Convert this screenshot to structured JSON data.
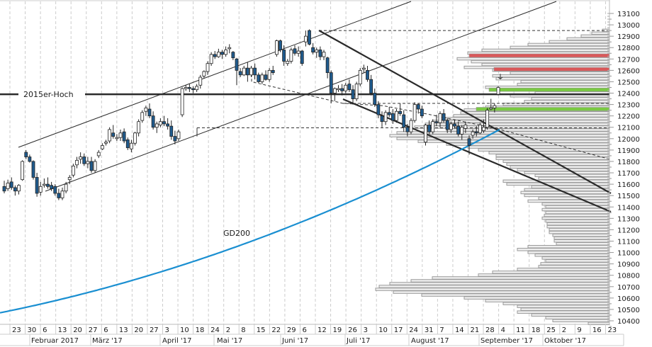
{
  "chart_data": {
    "type": "candlestick",
    "title": "",
    "instrument_hint": "DAX daily, Jan–Sep 2017",
    "xlabel": "",
    "ylabel": "",
    "ylim": [
      10300,
      13200
    ],
    "y_ticks": [
      13100,
      13000,
      12900,
      12800,
      12700,
      12600,
      12500,
      12400,
      12300,
      12200,
      12100,
      12000,
      11900,
      11800,
      11700,
      11600,
      11500,
      11400,
      11300,
      11200,
      11100,
      11000,
      10900,
      10800,
      10700,
      10600,
      10500,
      10400
    ],
    "x_day_ticks": [
      "23",
      "30",
      "6",
      "13",
      "20",
      "27",
      "6",
      "13",
      "20",
      "27",
      "3",
      "10",
      "18",
      "24",
      "2",
      "8",
      "15",
      "22",
      "29",
      "6",
      "12",
      "19",
      "26",
      "3",
      "10",
      "17",
      "24",
      "31",
      "7",
      "14",
      "21",
      "28",
      "4",
      "11",
      "18",
      "25",
      "2",
      "9",
      "16",
      "23"
    ],
    "x_month_labels": [
      "Februar 2017",
      "März '17",
      "April '17",
      "Mai '17",
      "Juni '17",
      "Juli '17",
      "August '17",
      "September '17",
      "Oktober '17"
    ],
    "grid": "vertical dashed weekly",
    "annotations": {
      "horizontal_line_label": "2015er-Hoch",
      "horizontal_line_level": 12390,
      "moving_average_label": "GD200",
      "moving_average_color": "#1a8fd1"
    },
    "colors": {
      "bull_candle_fill": "#ffffff",
      "bear_candle_fill": "#1f5b8e",
      "candle_outline": "#222222",
      "resistance_zone": "#d9585a",
      "support_zone": "#7ac943",
      "volume_profile_fill": "#eeeeee",
      "volume_profile_stroke": "#9a9a9a",
      "trendline": "#2a2a2a",
      "gridline": "#cccccc"
    },
    "zones": [
      {
        "type": "resistance",
        "level": 12730,
        "color": "#d9585a"
      },
      {
        "type": "resistance",
        "level": 12610,
        "color": "#d9585a"
      },
      {
        "type": "support",
        "level": 12430,
        "color": "#7ac943"
      },
      {
        "type": "support",
        "level": 12260,
        "color": "#7ac943"
      }
    ],
    "dashed_levels": [
      12950,
      12310,
      12095
    ],
    "gd200": {
      "start": {
        "date": "Jan 2017",
        "value": 10470
      },
      "end": {
        "date": "Sep 2017",
        "value": 12080
      }
    },
    "candles": [
      [
        11580,
        11630,
        11520,
        11540
      ],
      [
        11560,
        11640,
        11540,
        11610
      ],
      [
        11620,
        11660,
        11550,
        11570
      ],
      [
        11570,
        11590,
        11500,
        11540
      ],
      [
        11540,
        11600,
        11510,
        11590
      ],
      [
        11640,
        11810,
        11630,
        11800
      ],
      [
        11880,
        11900,
        11820,
        11840
      ],
      [
        11840,
        11860,
        11790,
        11800
      ],
      [
        11800,
        11810,
        11640,
        11660
      ],
      [
        11660,
        11700,
        11490,
        11520
      ],
      [
        11530,
        11620,
        11500,
        11580
      ],
      [
        11590,
        11650,
        11570,
        11600
      ],
      [
        11600,
        11660,
        11560,
        11580
      ],
      [
        11590,
        11620,
        11540,
        11560
      ],
      [
        11580,
        11600,
        11500,
        11520
      ],
      [
        11520,
        11560,
        11460,
        11480
      ],
      [
        11480,
        11570,
        11460,
        11540
      ],
      [
        11540,
        11620,
        11520,
        11600
      ],
      [
        11640,
        11680,
        11600,
        11660
      ],
      [
        11680,
        11780,
        11660,
        11760
      ],
      [
        11770,
        11840,
        11740,
        11810
      ],
      [
        11820,
        11880,
        11780,
        11840
      ],
      [
        11840,
        11870,
        11760,
        11780
      ],
      [
        11780,
        11840,
        11740,
        11800
      ],
      [
        11800,
        11840,
        11700,
        11720
      ],
      [
        11720,
        11820,
        11700,
        11800
      ],
      [
        11850,
        11900,
        11830,
        11880
      ],
      [
        11910,
        11960,
        11900,
        11940
      ],
      [
        11960,
        11990,
        11940,
        11970
      ],
      [
        11980,
        12100,
        11960,
        12080
      ],
      [
        12050,
        12120,
        12000,
        12020
      ],
      [
        12000,
        12040,
        11980,
        12010
      ],
      [
        12010,
        12080,
        11980,
        12050
      ],
      [
        12060,
        12090,
        11960,
        11980
      ],
      [
        11990,
        12010,
        11900,
        11920
      ],
      [
        11910,
        11990,
        11880,
        11960
      ],
      [
        11960,
        12060,
        11940,
        12050
      ],
      [
        12050,
        12170,
        12020,
        12150
      ],
      [
        12160,
        12250,
        12140,
        12230
      ],
      [
        12240,
        12290,
        12200,
        12270
      ],
      [
        12260,
        12310,
        12180,
        12200
      ],
      [
        12200,
        12240,
        12080,
        12100
      ],
      [
        12100,
        12150,
        12050,
        12130
      ],
      [
        12120,
        12180,
        12100,
        12150
      ],
      [
        12150,
        12200,
        12110,
        12130
      ],
      [
        12130,
        12180,
        12080,
        12110
      ],
      [
        12110,
        12160,
        11990,
        12020
      ],
      [
        12020,
        12070,
        11950,
        11980
      ],
      [
        12000,
        12080,
        11980,
        12060
      ],
      [
        12210,
        12450,
        12190,
        12440
      ],
      [
        12440,
        12470,
        12420,
        12450
      ],
      [
        12450,
        12480,
        12410,
        12440
      ],
      [
        12440,
        12460,
        12400,
        12430
      ],
      [
        12430,
        12480,
        12410,
        12460
      ],
      [
        12470,
        12560,
        12440,
        12540
      ],
      [
        12550,
        12600,
        12530,
        12590
      ],
      [
        12590,
        12680,
        12560,
        12660
      ],
      [
        12660,
        12760,
        12640,
        12740
      ],
      [
        12740,
        12770,
        12700,
        12720
      ],
      [
        12720,
        12790,
        12710,
        12760
      ],
      [
        12760,
        12780,
        12700,
        12740
      ],
      [
        12740,
        12810,
        12720,
        12780
      ],
      [
        12790,
        12830,
        12750,
        12800
      ],
      [
        12760,
        12770,
        12690,
        12710
      ],
      [
        12700,
        12710,
        12470,
        12600
      ],
      [
        12590,
        12620,
        12540,
        12560
      ],
      [
        12560,
        12640,
        12550,
        12620
      ],
      [
        12620,
        12670,
        12500,
        12560
      ],
      [
        12560,
        12640,
        12540,
        12620
      ],
      [
        12620,
        12660,
        12520,
        12560
      ],
      [
        12560,
        12580,
        12490,
        12500
      ],
      [
        12500,
        12580,
        12480,
        12560
      ],
      [
        12560,
        12600,
        12510,
        12520
      ],
      [
        12520,
        12620,
        12500,
        12600
      ],
      [
        12600,
        12640,
        12560,
        12580
      ],
      [
        12740,
        12870,
        12720,
        12860
      ],
      [
        12860,
        12870,
        12760,
        12780
      ],
      [
        12780,
        12820,
        12640,
        12680
      ],
      [
        12660,
        12700,
        12640,
        12680
      ],
      [
        12680,
        12800,
        12660,
        12780
      ],
      [
        12790,
        12820,
        12730,
        12750
      ],
      [
        12750,
        12810,
        12720,
        12770
      ],
      [
        12770,
        12780,
        12640,
        12660
      ],
      [
        12850,
        12950,
        12810,
        12900
      ],
      [
        12950,
        12960,
        12820,
        12830
      ],
      [
        12800,
        12840,
        12740,
        12760
      ],
      [
        12760,
        12800,
        12710,
        12780
      ],
      [
        12780,
        12810,
        12690,
        12720
      ],
      [
        12720,
        12780,
        12690,
        12760
      ],
      [
        12710,
        12720,
        12530,
        12580
      ],
      [
        12580,
        12600,
        12310,
        12400
      ],
      [
        12400,
        12450,
        12330,
        12440
      ],
      [
        12430,
        12470,
        12410,
        12440
      ],
      [
        12440,
        12480,
        12380,
        12420
      ],
      [
        12420,
        12490,
        12400,
        12470
      ],
      [
        12480,
        12520,
        12410,
        12430
      ],
      [
        12430,
        12470,
        12300,
        12350
      ],
      [
        12350,
        12500,
        12330,
        12480
      ],
      [
        12480,
        12620,
        12460,
        12600
      ],
      [
        12610,
        12650,
        12580,
        12620
      ],
      [
        12600,
        12640,
        12500,
        12520
      ],
      [
        12520,
        12560,
        12380,
        12400
      ],
      [
        12400,
        12440,
        12280,
        12300
      ],
      [
        12300,
        12330,
        12180,
        12210
      ],
      [
        12200,
        12240,
        12100,
        12150
      ],
      [
        12150,
        12250,
        12120,
        12230
      ],
      [
        12230,
        12280,
        12190,
        12210
      ],
      [
        12220,
        12260,
        12130,
        12160
      ],
      [
        12160,
        12260,
        12140,
        12240
      ],
      [
        12240,
        12310,
        12200,
        12220
      ],
      [
        12210,
        12250,
        12060,
        12100
      ],
      [
        12100,
        12130,
        12020,
        12060
      ],
      [
        12060,
        12180,
        12040,
        12160
      ],
      [
        12160,
        12320,
        12140,
        12300
      ],
      [
        12300,
        12310,
        12220,
        12260
      ],
      [
        12260,
        12290,
        12180,
        12200
      ],
      [
        11970,
        12130,
        11940,
        12120
      ],
      [
        12120,
        12160,
        12040,
        12060
      ],
      [
        12060,
        12170,
        12040,
        12150
      ],
      [
        12150,
        12210,
        12110,
        12140
      ],
      [
        12140,
        12240,
        12100,
        12220
      ],
      [
        12220,
        12260,
        12140,
        12160
      ],
      [
        12160,
        12180,
        12050,
        12080
      ],
      [
        12080,
        12150,
        12050,
        12130
      ],
      [
        12130,
        12170,
        12090,
        12110
      ],
      [
        12110,
        12150,
        12020,
        12040
      ],
      [
        12040,
        12120,
        11990,
        12100
      ],
      [
        12090,
        12150,
        12050,
        12120
      ],
      [
        12000,
        12030,
        11860,
        11940
      ],
      [
        12030,
        12080,
        12000,
        12060
      ],
      [
        12060,
        12110,
        12020,
        12050
      ],
      [
        12050,
        12140,
        12040,
        12120
      ],
      [
        12070,
        12170,
        12050,
        12100
      ],
      [
        12100,
        12270,
        12080,
        12250
      ],
      [
        12260,
        12350,
        12250,
        12270
      ],
      [
        12270,
        12310,
        12230,
        12290
      ],
      [
        12390,
        12460,
        12380,
        12450
      ]
    ],
    "volume_profile_note": "horizontal volume-at-price histogram anchored to right edge, one bar per ~25 index points from ~10380 to ~12950"
  }
}
